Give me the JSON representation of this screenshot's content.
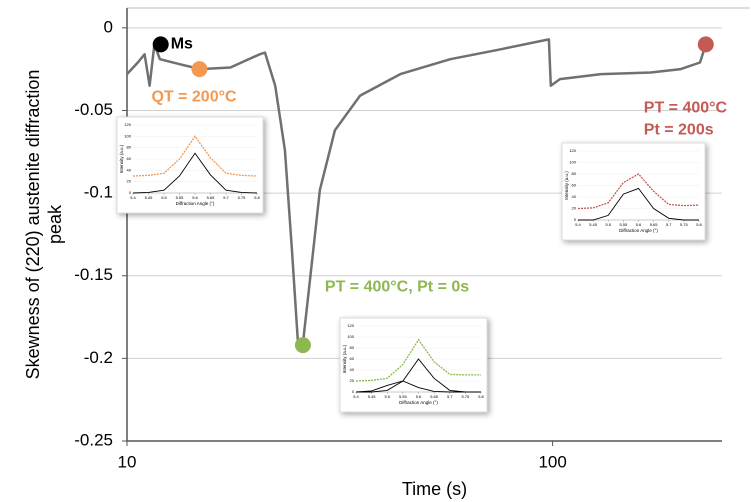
{
  "chart_data": [
    {
      "type": "line",
      "xlabel": "Time (s)",
      "ylabel": [
        "Skewness of (220) austenite diffraction",
        "peak"
      ],
      "xlog": true,
      "xlim": [
        10,
        250
      ],
      "xticks": [
        10,
        100
      ],
      "ylim": [
        -0.25,
        0.012
      ],
      "yticks": [
        0,
        -0.05,
        -0.1,
        -0.15,
        -0.2,
        -0.25
      ],
      "grid": true,
      "x": [
        10,
        10.6,
        11,
        11.3,
        11.6,
        11.95,
        13.3,
        14.85,
        17.5,
        20.5,
        21.1,
        22.3,
        23.5,
        24.4,
        25.2,
        25.9,
        26.9,
        28.4,
        30.8,
        35.3,
        43.9,
        57.5,
        75.5,
        93.5,
        98,
        99,
        104,
        130,
        170,
        200,
        222,
        229
      ],
      "series": [
        {
          "color": "#707070",
          "values": [
            -0.028,
            -0.021,
            -0.016,
            -0.035,
            -0.01,
            -0.019,
            -0.022,
            -0.025,
            -0.024,
            -0.016,
            -0.015,
            -0.035,
            -0.074,
            -0.134,
            -0.189,
            -0.191,
            -0.153,
            -0.098,
            -0.062,
            -0.041,
            -0.028,
            -0.019,
            -0.013,
            -0.008,
            -0.007,
            -0.035,
            -0.031,
            -0.028,
            -0.027,
            -0.025,
            -0.021,
            -0.01
          ]
        }
      ],
      "annotations": [
        {
          "text": [
            "Ms"
          ],
          "x": 12,
          "y": -0.01,
          "color": "#000000"
        },
        {
          "text": [
            "QT = 200°C"
          ],
          "x": 14.8,
          "y": -0.025,
          "color": "#f4984f"
        },
        {
          "text": [
            "PT = 400°C, Pt = 0s"
          ],
          "x": 25.9,
          "y": -0.192,
          "color": "#8db750"
        },
        {
          "text": [
            "PT = 400°C",
            "Pt = 200s"
          ],
          "x": 229,
          "y": -0.01,
          "color": "#c55a54"
        }
      ]
    },
    {
      "type": "inset",
      "xlabel": "Diffraction Angle (°)",
      "ylabel": "Intensity (a.u.)",
      "xlim": [
        5.4,
        5.8
      ],
      "xticks": [
        5.4,
        5.45,
        5.5,
        5.55,
        5.6,
        5.65,
        5.7,
        5.75,
        5.8
      ],
      "ylim": [
        0,
        120
      ],
      "yticks": [
        0,
        20,
        40,
        60,
        80,
        100,
        120
      ],
      "x": [
        5.4,
        5.45,
        5.5,
        5.55,
        5.6,
        5.65,
        5.7,
        5.75,
        5.8
      ],
      "series": [
        {
          "color": "#f4984f",
          "values": [
            30,
            31,
            35,
            60,
            100,
            62,
            35,
            31,
            30
          ]
        },
        {
          "color": "#000000",
          "values": [
            0,
            1,
            5,
            30,
            70,
            32,
            5,
            1,
            0
          ]
        }
      ]
    },
    {
      "type": "inset",
      "xlabel": "Diffraction Angle (°)",
      "ylabel": "Intensity (a.u.)",
      "xlim": [
        5.4,
        5.8
      ],
      "xticks": [
        5.4,
        5.45,
        5.5,
        5.55,
        5.6,
        5.65,
        5.7,
        5.75,
        5.8
      ],
      "ylim": [
        0,
        120
      ],
      "yticks": [
        0,
        20,
        40,
        60,
        80,
        100,
        120
      ],
      "x": [
        5.4,
        5.45,
        5.5,
        5.55,
        5.6,
        5.65,
        5.7,
        5.75,
        5.8
      ],
      "series": [
        {
          "color": "#c55a54",
          "values": [
            20,
            21,
            30,
            65,
            80,
            50,
            27,
            25,
            26
          ]
        },
        {
          "color": "#000000",
          "values": [
            0,
            0,
            8,
            45,
            55,
            20,
            3,
            0,
            0
          ]
        }
      ]
    },
    {
      "type": "inset",
      "xlabel": "Diffraction Angle (°)",
      "ylabel": "Intensity (a.u.)",
      "xlim": [
        5.4,
        5.8
      ],
      "xticks": [
        5.4,
        5.45,
        5.5,
        5.55,
        5.6,
        5.65,
        5.7,
        5.75,
        5.8
      ],
      "ylim": [
        0,
        120
      ],
      "yticks": [
        0,
        20,
        40,
        60,
        80,
        100,
        120
      ],
      "x": [
        5.4,
        5.45,
        5.5,
        5.55,
        5.6,
        5.65,
        5.7,
        5.75,
        5.8
      ],
      "series": [
        {
          "color": "#8db750",
          "values": [
            20,
            21,
            25,
            50,
            95,
            55,
            32,
            31,
            31
          ]
        },
        {
          "color": "#000000",
          "values": [
            0,
            0,
            3,
            20,
            60,
            25,
            3,
            0,
            0
          ]
        },
        {
          "color": "#000000",
          "values": [
            0,
            2,
            12,
            20,
            8,
            1,
            0,
            0,
            0
          ]
        }
      ]
    }
  ]
}
